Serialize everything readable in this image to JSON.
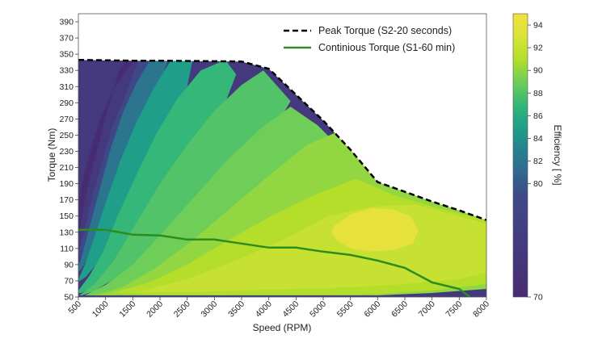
{
  "chart_data": {
    "type": "contour",
    "xlabel": "Speed (RPM)",
    "ylabel": "Torque (Nm)",
    "xlim": [
      500,
      8000
    ],
    "ylim": [
      50,
      400
    ],
    "x_ticks": [
      500,
      1000,
      1500,
      2000,
      2500,
      3000,
      3500,
      4000,
      4500,
      5000,
      5500,
      6000,
      6500,
      7000,
      7500,
      8000
    ],
    "y_ticks": [
      50,
      70,
      90,
      110,
      130,
      150,
      170,
      190,
      210,
      230,
      250,
      270,
      290,
      310,
      330,
      350,
      370,
      390
    ],
    "series": [
      {
        "name": "Peak Torque (S2-20 seconds)",
        "style": "dashed",
        "color": "#000000",
        "x": [
          500,
          1500,
          2000,
          3500,
          4000,
          4500,
          5000,
          5500,
          6000,
          6500,
          7000,
          7500,
          8000
        ],
        "y": [
          343,
          342,
          342,
          341,
          332,
          300,
          268,
          232,
          192,
          180,
          168,
          157,
          145
        ]
      },
      {
        "name": "Continious Torque (S1-60 min)",
        "style": "solid",
        "color": "#2e8b1e",
        "x": [
          500,
          1000,
          1500,
          2000,
          2500,
          3000,
          3500,
          4000,
          4500,
          5000,
          5500,
          6000,
          6500,
          7000,
          7500,
          7700
        ],
        "y": [
          133,
          133,
          127,
          126,
          121,
          121,
          116,
          111,
          111,
          106,
          102,
          95,
          86,
          68,
          60,
          50
        ]
      }
    ],
    "efficiency_regions": [
      {
        "level": 70,
        "x": [
          500,
          520,
          600,
          740,
          900,
          1100,
          1300,
          1480,
          1500,
          1380,
          1250,
          1120,
          990,
          880,
          760,
          670,
          590,
          520
        ],
        "y": [
          135,
          170,
          200,
          235,
          270,
          300,
          322,
          338,
          343,
          343,
          330,
          300,
          270,
          240,
          210,
          185,
          160,
          130
        ]
      },
      {
        "level": 78,
        "x": [
          500,
          600,
          760,
          930,
          1120,
          1370,
          1500,
          1620,
          1830,
          1690,
          1530,
          1370,
          1210,
          1060,
          920,
          800,
          700,
          610,
          540,
          500
        ],
        "y": [
          105,
          130,
          175,
          215,
          260,
          300,
          325,
          343,
          343,
          322,
          300,
          270,
          240,
          210,
          180,
          150,
          130,
          112,
          100,
          100
        ]
      },
      {
        "level": 82,
        "x": [
          500,
          580,
          720,
          900,
          1100,
          1320,
          1570,
          1820,
          2150,
          2000,
          1800,
          1600,
          1380,
          1170,
          980,
          820,
          690,
          590,
          520,
          500
        ],
        "y": [
          88,
          105,
          140,
          185,
          235,
          278,
          315,
          343,
          343,
          315,
          285,
          250,
          215,
          180,
          150,
          122,
          100,
          88,
          82,
          82
        ]
      },
      {
        "level": 85,
        "x": [
          500,
          620,
          800,
          1020,
          1280,
          1560,
          1860,
          2200,
          2600,
          2500,
          2280,
          2040,
          1780,
          1500,
          1240,
          1000,
          800,
          640,
          530,
          500
        ],
        "y": [
          72,
          90,
          125,
          170,
          220,
          265,
          305,
          343,
          343,
          310,
          275,
          240,
          200,
          165,
          135,
          108,
          88,
          75,
          70,
          70
        ]
      },
      {
        "level": 87,
        "x": [
          500,
          700,
          950,
          1220,
          1560,
          1920,
          2320,
          2750,
          3200,
          3400,
          3200,
          2900,
          2520,
          2100,
          1700,
          1330,
          1000,
          750,
          560,
          500
        ],
        "y": [
          58,
          76,
          105,
          150,
          200,
          250,
          295,
          330,
          343,
          325,
          290,
          250,
          210,
          170,
          135,
          105,
          80,
          62,
          55,
          55
        ]
      },
      {
        "level": 88,
        "x": [
          520,
          800,
          1150,
          1550,
          2000,
          2500,
          3000,
          3500,
          3900,
          4400,
          4100,
          3650,
          3150,
          2600,
          2050,
          1550,
          1100,
          780,
          560
        ],
        "y": [
          52,
          66,
          95,
          140,
          190,
          238,
          280,
          312,
          330,
          292,
          258,
          220,
          185,
          150,
          118,
          92,
          70,
          57,
          52
        ]
      },
      {
        "level": 89,
        "x": [
          620,
          1000,
          1500,
          2050,
          2650,
          3250,
          3850,
          4400,
          4900,
          5400,
          5000,
          4400,
          3750,
          3100,
          2450,
          1850,
          1300,
          850
        ],
        "y": [
          52,
          65,
          90,
          130,
          175,
          220,
          258,
          285,
          262,
          228,
          200,
          172,
          145,
          120,
          96,
          75,
          60,
          52
        ]
      },
      {
        "level": 90,
        "x": [
          800,
          1300,
          1900,
          2600,
          3300,
          4000,
          4700,
          5300,
          5800,
          6150,
          6600,
          7100,
          7600,
          8000,
          8000,
          7000,
          6000,
          5000,
          4000,
          3000,
          2000,
          1200
        ],
        "y": [
          52,
          62,
          85,
          120,
          160,
          200,
          238,
          255,
          220,
          192,
          178,
          166,
          155,
          145,
          60,
          55,
          52,
          52,
          52,
          52,
          52,
          52
        ]
      },
      {
        "level": 91,
        "x": [
          1100,
          1800,
          2500,
          3300,
          4100,
          4900,
          5600,
          6300,
          7000,
          7700,
          8000,
          8000,
          7500,
          7000,
          6500,
          6000,
          5000,
          4000,
          3000,
          2000
        ],
        "y": [
          55,
          68,
          90,
          122,
          152,
          178,
          196,
          176,
          162,
          150,
          145,
          66,
          62,
          58,
          56,
          54,
          53,
          53,
          53,
          53
        ]
      },
      {
        "level": 92,
        "x": [
          1600,
          2500,
          3400,
          4300,
          5100,
          5900,
          6700,
          7500,
          8000,
          8000,
          7500,
          6500,
          5500,
          4500,
          3500,
          2500
        ],
        "y": [
          56,
          72,
          95,
          122,
          150,
          162,
          164,
          150,
          140,
          80,
          72,
          66,
          62,
          60,
          58,
          56
        ]
      },
      {
        "level": 94,
        "x": [
          5200,
          5500,
          5900,
          6300,
          6600,
          6750,
          6650,
          6300,
          5900,
          5500,
          5250,
          5150
        ],
        "y": [
          138,
          152,
          160,
          158,
          150,
          133,
          116,
          108,
          106,
          110,
          120,
          130
        ]
      }
    ],
    "colorbar": {
      "label": "Efficiency [ %]",
      "min": 70,
      "max": 95,
      "ticks": [
        70,
        80,
        82,
        84,
        86,
        88,
        90,
        92,
        94
      ],
      "stops": [
        {
          "v": 70,
          "color": "#482c73"
        },
        {
          "v": 79,
          "color": "#3e4a89"
        },
        {
          "v": 81,
          "color": "#31688e"
        },
        {
          "v": 83,
          "color": "#26828e"
        },
        {
          "v": 85,
          "color": "#1f9e89"
        },
        {
          "v": 87,
          "color": "#35b779"
        },
        {
          "v": 89,
          "color": "#6ece58"
        },
        {
          "v": 91,
          "color": "#b5de2b"
        },
        {
          "v": 93,
          "color": "#d9e43a"
        },
        {
          "v": 95,
          "color": "#f2e03c"
        }
      ]
    }
  }
}
